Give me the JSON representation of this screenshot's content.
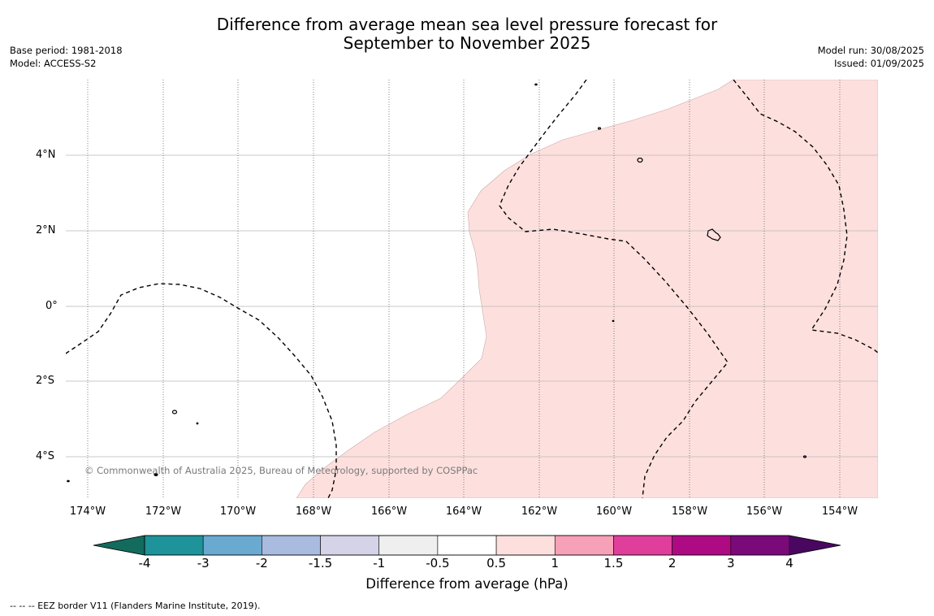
{
  "title": {
    "line1": "Difference from average mean sea level pressure forecast for",
    "line2": "September to November 2025"
  },
  "meta_left": {
    "base_period": "Base period: 1981-2018",
    "model": "Model: ACCESS-S2"
  },
  "meta_right": {
    "model_run": "Model run: 30/08/2025",
    "issued": "Issued: 01/09/2025"
  },
  "map": {
    "latitude_labels": [
      "4°N",
      "2°N",
      "0°",
      "2°S",
      "4°S"
    ],
    "longitude_labels": [
      "174°W",
      "172°W",
      "170°W",
      "168°W",
      "166°W",
      "164°W",
      "162°W",
      "160°W",
      "158°W",
      "156°W",
      "154°W"
    ],
    "shaded_anomaly_class": "0.5 to 1 hPa",
    "shaded_color": "#fde0de",
    "copyright": "© Commonwealth of Australia 2025, Bureau of Meteorology, supported by COSPPac"
  },
  "colorbar": {
    "title": "Difference from average (hPa)",
    "labels": [
      "-4",
      "-3",
      "-2",
      "-1.5",
      "-1",
      "-0.5",
      "0.5",
      "1",
      "1.5",
      "2",
      "3",
      "4"
    ],
    "colors": [
      "#136b5e",
      "#1e9399",
      "#6aaad1",
      "#a9bcdf",
      "#d4d3e8",
      "#efefef",
      "#ffffff",
      "#fde0de",
      "#f7a1b8",
      "#df3f9b",
      "#ad0a83",
      "#7a0a7a",
      "#4a0760"
    ]
  },
  "legend_note": "--  --  -- EEZ border V11 (Flanders Marine Institute, 2019)."
}
